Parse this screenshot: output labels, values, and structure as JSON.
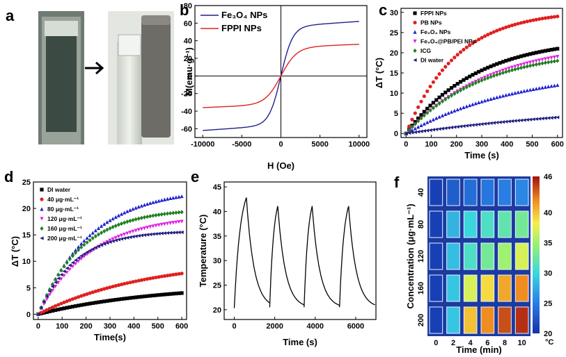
{
  "panel_labels": [
    "a",
    "b",
    "c",
    "d",
    "e",
    "f"
  ],
  "chart_data": [
    {
      "panel": "b",
      "type": "line",
      "xlabel": "H (Oe)",
      "ylabel": "M(emu·g⁻¹)",
      "xlim": [
        -11000,
        11000
      ],
      "ylim": [
        -70,
        80
      ],
      "xticks": [
        -10000,
        -5000,
        0,
        5000,
        10000
      ],
      "yticks": [
        -60,
        -40,
        -20,
        0,
        20,
        40,
        60,
        80
      ],
      "grid": false,
      "legend_position": "top-left",
      "series": [
        {
          "name": "Fe₃O₄ NPs",
          "color": "#1f1f8f",
          "ms": 62,
          "hk": 1500
        },
        {
          "name": "FPPI NPs",
          "color": "#e02020",
          "ms": 36,
          "hk": 2000
        }
      ]
    },
    {
      "panel": "c",
      "type": "scatter",
      "xlabel": "Time (s)",
      "ylabel": "ΔT (°C)",
      "xlim": [
        -20,
        620
      ],
      "ylim": [
        -1,
        31
      ],
      "xticks": [
        0,
        100,
        200,
        300,
        400,
        500,
        600
      ],
      "yticks": [
        0,
        5,
        10,
        15,
        20,
        25,
        30
      ],
      "grid": false,
      "legend_position": "top-left",
      "x": [
        0,
        600
      ],
      "series": [
        {
          "name": "FPPI NPs",
          "color": "#000000",
          "marker": "square",
          "end": 21,
          "tau": 280
        },
        {
          "name": "PB NPs",
          "color": "#e02020",
          "marker": "circle",
          "end": 29,
          "tau": 200
        },
        {
          "name": "Fe₃O₄ NPs",
          "color": "#2020d0",
          "marker": "triangle-up",
          "end": 12,
          "tau": 450
        },
        {
          "name": "Fe₃O₄@PB/PEI NPs",
          "color": "#e020e0",
          "marker": "triangle-down",
          "end": 19,
          "tau": 330
        },
        {
          "name": "ICG",
          "color": "#208020",
          "marker": "diamond",
          "end": 18,
          "tau": 300
        },
        {
          "name": "DI water",
          "color": "#202080",
          "marker": "triangle-left",
          "end": 4,
          "tau": 900
        }
      ]
    },
    {
      "panel": "d",
      "type": "scatter",
      "xlabel": "Time(s)",
      "ylabel": "ΔT (°C)",
      "xlim": [
        -20,
        620
      ],
      "ylim": [
        -1,
        25
      ],
      "xticks": [
        0,
        100,
        200,
        300,
        400,
        500,
        600
      ],
      "yticks": [
        0,
        5,
        10,
        15,
        20,
        25
      ],
      "grid": false,
      "legend_position": "top-left",
      "series": [
        {
          "name": "DI water",
          "color": "#000000",
          "marker": "square",
          "end": 4,
          "tau": 500
        },
        {
          "name": "40 μg·mL⁻¹",
          "color": "#e02020",
          "marker": "circle",
          "end": 7.7,
          "tau": 450
        },
        {
          "name": "80 μg·mL⁻¹",
          "color": "#2020d0",
          "marker": "triangle-up",
          "end": 22.3,
          "tau": 220
        },
        {
          "name": "120 μg·mL⁻¹",
          "color": "#e020e0",
          "marker": "triangle-down",
          "end": 17.5,
          "tau": 220
        },
        {
          "name": "160 μg·mL⁻¹",
          "color": "#208020",
          "marker": "diamond",
          "end": 19.3,
          "tau": 180
        },
        {
          "name": "200 μg·mL⁻¹",
          "color": "#202080",
          "marker": "triangle-left",
          "end": 15.5,
          "tau": 150
        }
      ]
    },
    {
      "panel": "e",
      "type": "line",
      "xlabel": "Time (s)",
      "ylabel": "Temperature (°C)",
      "xlim": [
        -500,
        7000
      ],
      "ylim": [
        18,
        46
      ],
      "xticks": [
        0,
        2000,
        4000,
        6000
      ],
      "yticks": [
        20,
        25,
        30,
        35,
        40,
        45
      ],
      "grid": false,
      "cycles": [
        {
          "start": 0,
          "peak_time": 600,
          "end": 1750,
          "start_temp": 20.3,
          "peak": 42.7
        },
        {
          "start": 1750,
          "peak_time": 2150,
          "end": 3450,
          "start_temp": 20.5,
          "peak": 41
        },
        {
          "start": 3450,
          "peak_time": 3850,
          "end": 5200,
          "start_temp": 20.5,
          "peak": 41
        },
        {
          "start": 5200,
          "peak_time": 5650,
          "end": 6950,
          "start_temp": 20.5,
          "peak": 41
        }
      ],
      "series": [
        {
          "color": "#000000"
        }
      ]
    },
    {
      "panel": "f",
      "type": "heatmap",
      "xlabel": "Time (min)",
      "ylabel": "Concentration (μg·mL⁻¹)",
      "x": [
        0,
        2,
        4,
        6,
        8,
        10
      ],
      "y": [
        40,
        80,
        120,
        160,
        200
      ],
      "values": [
        [
          21,
          23,
          24,
          24.5,
          25,
          25.5
        ],
        [
          21,
          28,
          30,
          31,
          32,
          33
        ],
        [
          21,
          28.5,
          31,
          33,
          35,
          37
        ],
        [
          21,
          29,
          37,
          39,
          41,
          42
        ],
        [
          21,
          29,
          40,
          42,
          44,
          45
        ]
      ],
      "colorbar": {
        "min": 20,
        "max": 46,
        "ticks": [
          20,
          25,
          30,
          35,
          40,
          46
        ],
        "unit": "°C"
      }
    }
  ]
}
